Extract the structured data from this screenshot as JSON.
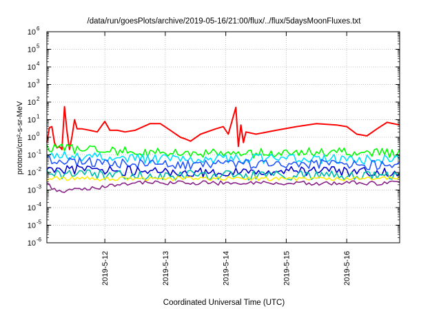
{
  "chart_data": {
    "type": "line",
    "title": "/data/run/goesPlots/archive/2019-05-16/21:00/flux/../flux/5daysMoonFluxes.txt",
    "xlabel": "Coordinated Universal Time (UTC)",
    "ylabel": "protons/cm²-s-sr-MeV",
    "y_scale": "log",
    "ylim": [
      1e-06,
      1000000.0
    ],
    "xlim": [
      "2019-05-11 01:00",
      "2019-05-16 21:00"
    ],
    "grid": true,
    "legend": "none",
    "x_ticks": [
      {
        "value": "2019-05-12 00:00",
        "label": "2019-5-12"
      },
      {
        "value": "2019-05-13 00:00",
        "label": "2019-5-13"
      },
      {
        "value": "2019-05-14 00:00",
        "label": "2019-5-14"
      },
      {
        "value": "2019-05-15 00:00",
        "label": "2019-5-15"
      },
      {
        "value": "2019-05-16 00:00",
        "label": "2019-5-16"
      }
    ],
    "y_ticks": [
      {
        "value": 1e-06,
        "base": "10",
        "exp": "-6"
      },
      {
        "value": 1e-05,
        "base": "10",
        "exp": "-5"
      },
      {
        "value": 0.0001,
        "base": "10",
        "exp": "-4"
      },
      {
        "value": 0.001,
        "base": "10",
        "exp": "-3"
      },
      {
        "value": 0.01,
        "base": "10",
        "exp": "-2"
      },
      {
        "value": 0.1,
        "base": "10",
        "exp": "-1"
      },
      {
        "value": 1,
        "base": "10",
        "exp": "0"
      },
      {
        "value": 10,
        "base": "10",
        "exp": "1"
      },
      {
        "value": 100,
        "base": "10",
        "exp": "2"
      },
      {
        "value": 1000,
        "base": "10",
        "exp": "3"
      },
      {
        "value": 10000,
        "base": "10",
        "exp": "4"
      },
      {
        "value": 100000,
        "base": "10",
        "exp": "5"
      },
      {
        "value": 1000000,
        "base": "10",
        "exp": "6"
      }
    ],
    "series": [
      {
        "color": "#ff0000",
        "points": [
          [
            "2019-05-11 01:00",
            0.5
          ],
          [
            "2019-05-11 02:00",
            3.5
          ],
          [
            "2019-05-11 03:00",
            4.0
          ],
          [
            "2019-05-11 04:00",
            0.5
          ],
          [
            "2019-05-11 05:00",
            0.25
          ],
          [
            "2019-05-11 06:00",
            0.3
          ],
          [
            "2019-05-11 07:00",
            0.2
          ],
          [
            "2019-05-11 08:00",
            55
          ],
          [
            "2019-05-11 09:00",
            2.0
          ],
          [
            "2019-05-11 10:00",
            0.2
          ],
          [
            "2019-05-11 11:00",
            1.2
          ],
          [
            "2019-05-11 12:00",
            10
          ],
          [
            "2019-05-11 13:00",
            3
          ],
          [
            "2019-05-11 15:00",
            3
          ],
          [
            "2019-05-11 18:00",
            2.5
          ],
          [
            "2019-05-11 21:00",
            2.0
          ],
          [
            "2019-05-12 00:00",
            8
          ],
          [
            "2019-05-12 02:00",
            2.5
          ],
          [
            "2019-05-12 05:00",
            2.5
          ],
          [
            "2019-05-12 08:00",
            2.0
          ],
          [
            "2019-05-12 12:00",
            2.5
          ],
          [
            "2019-05-12 18:00",
            6
          ],
          [
            "2019-05-12 22:00",
            6
          ],
          [
            "2019-05-13 02:00",
            2.5
          ],
          [
            "2019-05-13 06:00",
            1.0
          ],
          [
            "2019-05-13 08:00",
            0.8
          ],
          [
            "2019-05-13 10:00",
            0.6
          ],
          [
            "2019-05-13 14:00",
            1.5
          ],
          [
            "2019-05-13 20:00",
            3
          ],
          [
            "2019-05-13 23:00",
            4
          ],
          [
            "2019-05-14 01:00",
            1.5
          ],
          [
            "2019-05-14 04:00",
            50
          ],
          [
            "2019-05-14 05:00",
            0.3
          ],
          [
            "2019-05-14 06:00",
            5
          ],
          [
            "2019-05-14 07:00",
            0.5
          ],
          [
            "2019-05-14 08:00",
            2.0
          ],
          [
            "2019-05-14 12:00",
            1.5
          ],
          [
            "2019-05-14 20:00",
            2.5
          ],
          [
            "2019-05-15 04:00",
            4
          ],
          [
            "2019-05-15 12:00",
            6
          ],
          [
            "2019-05-15 20:00",
            5
          ],
          [
            "2019-05-16 00:00",
            4
          ],
          [
            "2019-05-16 04:00",
            1.5
          ],
          [
            "2019-05-16 08:00",
            1.2
          ],
          [
            "2019-05-16 12:00",
            3
          ],
          [
            "2019-05-16 16:00",
            7
          ],
          [
            "2019-05-16 21:00",
            5
          ]
        ]
      },
      {
        "color": "#00ff00",
        "points": [
          [
            "2019-05-11 01:00",
            0.25
          ],
          [
            "2019-05-12 12:00",
            0.15
          ],
          [
            "2019-05-13 12:00",
            0.12
          ],
          [
            "2019-05-14 12:00",
            0.12
          ],
          [
            "2019-05-15 12:00",
            0.15
          ],
          [
            "2019-05-16 21:00",
            0.12
          ]
        ]
      },
      {
        "color": "#00ddff",
        "points": [
          [
            "2019-05-11 01:00",
            0.1
          ],
          [
            "2019-05-12 12:00",
            0.06
          ],
          [
            "2019-05-13 12:00",
            0.06
          ],
          [
            "2019-05-14 12:00",
            0.06
          ],
          [
            "2019-05-15 12:00",
            0.06
          ],
          [
            "2019-05-16 21:00",
            0.05
          ]
        ]
      },
      {
        "color": "#2255ff",
        "points": [
          [
            "2019-05-11 01:00",
            0.05
          ],
          [
            "2019-05-12 12:00",
            0.03
          ],
          [
            "2019-05-13 12:00",
            0.025
          ],
          [
            "2019-05-14 12:00",
            0.03
          ],
          [
            "2019-05-15 12:00",
            0.03
          ],
          [
            "2019-05-16 21:00",
            0.025
          ]
        ]
      },
      {
        "color": "#0000cc",
        "points": [
          [
            "2019-05-11 01:00",
            0.015
          ],
          [
            "2019-05-12 12:00",
            0.012
          ],
          [
            "2019-05-13 12:00",
            0.01
          ],
          [
            "2019-05-14 12:00",
            0.012
          ],
          [
            "2019-05-15 12:00",
            0.012
          ],
          [
            "2019-05-16 21:00",
            0.01
          ]
        ]
      },
      {
        "color": "#00bbaa",
        "points": [
          [
            "2019-05-11 01:00",
            0.008
          ],
          [
            "2019-05-12 12:00",
            0.007
          ],
          [
            "2019-05-13 12:00",
            0.007
          ],
          [
            "2019-05-14 12:00",
            0.007
          ],
          [
            "2019-05-15 12:00",
            0.007
          ],
          [
            "2019-05-16 21:00",
            0.007
          ]
        ]
      },
      {
        "color": "#ffee00",
        "points": [
          [
            "2019-05-11 01:00",
            0.0045
          ],
          [
            "2019-05-12 12:00",
            0.0045
          ],
          [
            "2019-05-13 12:00",
            0.0045
          ],
          [
            "2019-05-14 12:00",
            0.0045
          ],
          [
            "2019-05-15 12:00",
            0.0045
          ],
          [
            "2019-05-16 21:00",
            0.0045
          ]
        ]
      },
      {
        "color": "#882288",
        "points": [
          [
            "2019-05-11 01:00",
            0.0025
          ],
          [
            "2019-05-11 05:00",
            0.0008
          ],
          [
            "2019-05-12 12:00",
            0.0025
          ],
          [
            "2019-05-13 12:00",
            0.0025
          ],
          [
            "2019-05-14 12:00",
            0.0025
          ],
          [
            "2019-05-15 12:00",
            0.0025
          ],
          [
            "2019-05-16 21:00",
            0.0025
          ]
        ]
      }
    ]
  }
}
